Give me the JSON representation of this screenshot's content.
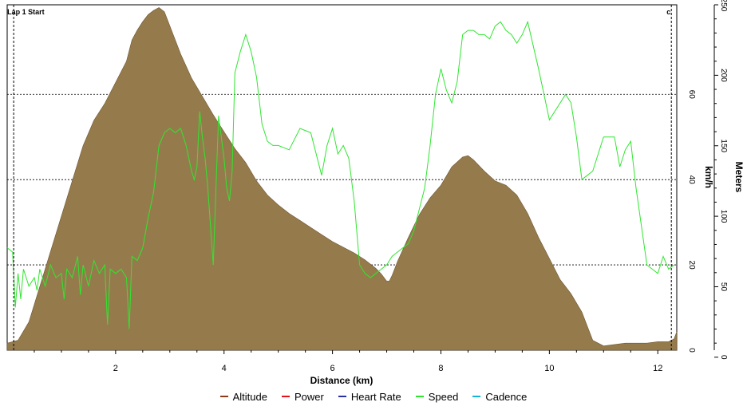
{
  "chart_data": {
    "type": "line",
    "xlabel": "Distance (km)",
    "xlim": [
      0,
      12.35
    ],
    "xticks": [
      2,
      4,
      6,
      8,
      10,
      12
    ],
    "y_axes": {
      "speed": {
        "label": "km/h",
        "lim": [
          0,
          81
        ],
        "ticks": [
          0,
          20,
          40,
          60
        ]
      },
      "altitude": {
        "label": "Meters",
        "lim": [
          5,
          250
        ],
        "ticks": [
          0,
          50,
          100,
          150,
          200,
          250
        ]
      }
    },
    "markers": [
      {
        "label": "Lap 1 Start",
        "x": 0.12
      },
      {
        "label": "c",
        "x": 12.25
      }
    ],
    "grid": "horizontal dotted",
    "legend_position": "bottom",
    "series": [
      {
        "name": "Altitude",
        "color": "#8c3a1a",
        "fill": "#957b4c",
        "axis": "altitude",
        "x": [
          0,
          0.2,
          0.4,
          0.6,
          0.8,
          1.0,
          1.2,
          1.4,
          1.6,
          1.8,
          2.0,
          2.2,
          2.3,
          2.4,
          2.5,
          2.6,
          2.7,
          2.8,
          2.9,
          3.0,
          3.2,
          3.4,
          3.6,
          3.8,
          4.0,
          4.2,
          4.4,
          4.6,
          4.8,
          5.0,
          5.2,
          5.4,
          5.6,
          5.8,
          6.0,
          6.2,
          6.4,
          6.6,
          6.8,
          6.9,
          7.0,
          7.05,
          7.1,
          7.2,
          7.4,
          7.6,
          7.8,
          8.0,
          8.2,
          8.4,
          8.5,
          8.6,
          8.8,
          9.0,
          9.2,
          9.4,
          9.6,
          9.8,
          10.0,
          10.2,
          10.4,
          10.6,
          10.7,
          10.8,
          11.0,
          11.2,
          11.4,
          11.6,
          11.8,
          12.0,
          12.2,
          12.3,
          12.35
        ],
        "values": [
          10,
          12,
          25,
          50,
          75,
          100,
          125,
          150,
          168,
          180,
          195,
          210,
          225,
          232,
          238,
          243,
          246,
          248,
          245,
          235,
          215,
          198,
          185,
          172,
          160,
          148,
          138,
          125,
          115,
          108,
          102,
          97,
          92,
          87,
          82,
          78,
          74,
          69,
          63,
          59,
          54,
          54,
          58,
          68,
          85,
          101,
          113,
          122,
          135,
          142,
          143,
          140,
          132,
          125,
          122,
          115,
          102,
          85,
          70,
          55,
          45,
          32,
          22,
          12,
          8,
          9,
          10,
          10,
          10,
          11,
          11,
          13,
          18
        ]
      },
      {
        "name": "Power",
        "color": "#e6101a",
        "values": []
      },
      {
        "name": "Heart Rate",
        "color": "#2830a8",
        "values": []
      },
      {
        "name": "Speed",
        "color": "#2fe62f",
        "axis": "speed",
        "x": [
          0,
          0.1,
          0.15,
          0.2,
          0.25,
          0.3,
          0.4,
          0.5,
          0.55,
          0.6,
          0.7,
          0.8,
          0.9,
          1.0,
          1.05,
          1.1,
          1.2,
          1.3,
          1.35,
          1.4,
          1.5,
          1.6,
          1.7,
          1.8,
          1.85,
          1.9,
          2.0,
          2.1,
          2.2,
          2.25,
          2.3,
          2.4,
          2.5,
          2.6,
          2.7,
          2.8,
          2.9,
          3.0,
          3.1,
          3.2,
          3.3,
          3.4,
          3.45,
          3.5,
          3.55,
          3.6,
          3.65,
          3.7,
          3.8,
          3.85,
          3.9,
          3.95,
          4.0,
          4.05,
          4.1,
          4.15,
          4.2,
          4.3,
          4.4,
          4.5,
          4.6,
          4.7,
          4.8,
          4.9,
          5.0,
          5.2,
          5.4,
          5.6,
          5.8,
          5.9,
          6.0,
          6.1,
          6.2,
          6.3,
          6.4,
          6.5,
          6.6,
          6.7,
          6.8,
          6.9,
          7.0,
          7.1,
          7.2,
          7.3,
          7.4,
          7.5,
          7.6,
          7.7,
          7.8,
          7.9,
          8.0,
          8.1,
          8.2,
          8.3,
          8.4,
          8.5,
          8.6,
          8.7,
          8.8,
          8.9,
          9.0,
          9.1,
          9.2,
          9.3,
          9.4,
          9.5,
          9.6,
          9.8,
          10.0,
          10.2,
          10.3,
          10.4,
          10.5,
          10.6,
          10.7,
          10.8,
          11.0,
          11.2,
          11.3,
          11.4,
          11.5,
          11.6,
          11.8,
          12.0,
          12.1,
          12.2,
          12.3
        ],
        "values": [
          24,
          23,
          10,
          18,
          12,
          19,
          15,
          17,
          14,
          19,
          15,
          20,
          17,
          18,
          12,
          19,
          17,
          22,
          13,
          20,
          15,
          21,
          18,
          20,
          6,
          19,
          18,
          19,
          17,
          5,
          22,
          21,
          24,
          31,
          37,
          48,
          51,
          52,
          51,
          52,
          48,
          42,
          40,
          43,
          56,
          50,
          45,
          38,
          20,
          38,
          55,
          50,
          45,
          38,
          35,
          42,
          65,
          70,
          74,
          70,
          64,
          53,
          49,
          48,
          48,
          47,
          52,
          51,
          41,
          48,
          52,
          46,
          48,
          45,
          35,
          20,
          18,
          17,
          18,
          19,
          20,
          22,
          23,
          24,
          25,
          28,
          33,
          38,
          48,
          60,
          66,
          61,
          58,
          63,
          74,
          75,
          75,
          74,
          74,
          73,
          76,
          77,
          75,
          74,
          72,
          74,
          77,
          66,
          54,
          58,
          60,
          58,
          50,
          40,
          41,
          42,
          50,
          50,
          43,
          47,
          49,
          38,
          20,
          18,
          22,
          19,
          20
        ]
      },
      {
        "name": "Cadence",
        "color": "#14b4d8",
        "values": []
      }
    ]
  }
}
